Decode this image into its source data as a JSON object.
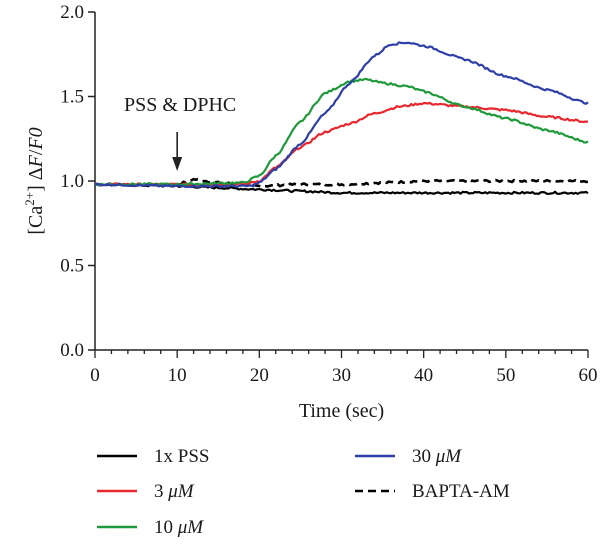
{
  "chart_data": {
    "type": "line",
    "xlabel": "Time (sec)",
    "ylabel": "[Ca2+] ΔF/F0",
    "ylabel_parts": {
      "bracket_open": "[Ca",
      "superscript": "2+",
      "bracket_close": "] ",
      "delta": "Δ",
      "f": "F",
      "slash": "/",
      "f0": "F0"
    },
    "xlim": [
      0,
      60
    ],
    "ylim": [
      0,
      2
    ],
    "x_ticks": [
      "0",
      "10",
      "20",
      "30",
      "40",
      "50",
      "60"
    ],
    "y_ticks": [
      "0.0",
      "0.5",
      "1.0",
      "1.5",
      "2.0"
    ],
    "grid": false,
    "legend_position": "bottom",
    "annotations": [
      {
        "text": "PSS & DPHC",
        "x": 10,
        "y": 0.99
      }
    ],
    "series": [
      {
        "name": "1x PSS",
        "legend_prefix": "1x PSS",
        "legend_unit": "",
        "color": "#000000",
        "dash": "solid",
        "x": [
          0,
          10,
          15,
          20,
          25,
          30,
          35,
          40,
          45,
          50,
          55,
          60
        ],
        "y": [
          0.98,
          0.97,
          0.96,
          0.95,
          0.94,
          0.93,
          0.93,
          0.93,
          0.93,
          0.93,
          0.93,
          0.93
        ]
      },
      {
        "name": "3 μM",
        "legend_prefix": "3 ",
        "legend_unit": "μM",
        "color": "#e8272e",
        "dash": "solid",
        "x": [
          0,
          10,
          18,
          20,
          22,
          25,
          28,
          31,
          34,
          37,
          40,
          45,
          50,
          55,
          60
        ],
        "y": [
          0.98,
          0.98,
          0.98,
          1.0,
          1.08,
          1.2,
          1.29,
          1.34,
          1.4,
          1.44,
          1.46,
          1.44,
          1.42,
          1.38,
          1.35
        ]
      },
      {
        "name": "10 μM",
        "legend_prefix": "10 ",
        "legend_unit": "μM",
        "color": "#1f9a3a",
        "dash": "solid",
        "x": [
          0,
          10,
          18,
          20,
          22,
          25,
          28,
          31,
          33,
          35,
          38,
          40,
          45,
          50,
          55,
          60
        ],
        "y": [
          0.98,
          0.98,
          0.99,
          1.03,
          1.15,
          1.35,
          1.52,
          1.59,
          1.6,
          1.58,
          1.56,
          1.53,
          1.44,
          1.37,
          1.3,
          1.23
        ]
      },
      {
        "name": "30 μM",
        "legend_prefix": "30 ",
        "legend_unit": "μM",
        "color": "#2e3fa8",
        "dash": "solid",
        "x": [
          0,
          10,
          19,
          20,
          22,
          25,
          28,
          31,
          34,
          36,
          38,
          40,
          45,
          50,
          55,
          60
        ],
        "y": [
          0.98,
          0.97,
          0.97,
          0.99,
          1.07,
          1.22,
          1.4,
          1.58,
          1.74,
          1.81,
          1.82,
          1.8,
          1.72,
          1.62,
          1.54,
          1.46
        ]
      },
      {
        "name": "BAPTA-AM",
        "legend_prefix": "BAPTA-AM",
        "legend_unit": "",
        "color": "#000000",
        "dash": "dashed",
        "x": [
          0,
          10,
          12,
          15,
          20,
          25,
          30,
          35,
          40,
          45,
          50,
          55,
          60
        ],
        "y": [
          0.98,
          0.98,
          1.01,
          0.99,
          0.97,
          0.98,
          0.98,
          0.99,
          1.0,
          1.0,
          1.0,
          1.0,
          1.0
        ]
      }
    ]
  }
}
